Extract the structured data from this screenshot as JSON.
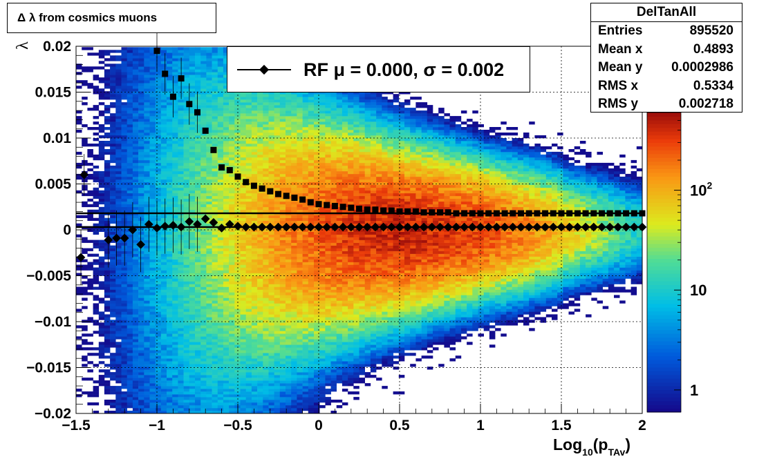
{
  "title": "Δ λ from cosmics muons",
  "stats": {
    "name": "DelTanAll",
    "rows": [
      {
        "label": "Entries",
        "value": "895520"
      },
      {
        "label": "Mean x",
        "value": "0.4893"
      },
      {
        "label": "Mean y",
        "value": "0.0002986"
      },
      {
        "label": "RMS x",
        "value": "0.5334"
      },
      {
        "label": "RMS y",
        "value": "0.002718"
      }
    ]
  },
  "legend": {
    "text": "RF μ =  0.000, σ =   0.002"
  },
  "chart_data": {
    "type": "heatmap",
    "xlabel": "Log10(pTAv)",
    "ylabel": "λ",
    "xlim": [
      -1.5,
      2
    ],
    "ylim": [
      -0.02,
      0.02
    ],
    "xticks": [
      -1.5,
      -1,
      -0.5,
      0,
      0.5,
      1,
      1.5,
      2
    ],
    "xtick_labels": [
      "−1.5",
      "−1",
      "−0.5",
      "0",
      "0.5",
      "1",
      "1.5",
      "2"
    ],
    "yticks": [
      -0.02,
      -0.015,
      -0.01,
      -0.005,
      0,
      0.005,
      0.01,
      0.015,
      0.02
    ],
    "ytick_labels": [
      "−0.02",
      "−0.015",
      "−0.01",
      "−0.005",
      "0",
      "0.005",
      "0.01",
      "0.015",
      "0.02"
    ],
    "grid": true,
    "z_scale": "log",
    "colorbar_labels": [
      "1",
      "10",
      "10^2"
    ],
    "colorbar_values": [
      1,
      10,
      100
    ],
    "zlim": [
      0.6,
      600
    ],
    "horizontal_lines": [
      0.0018,
      0.0003
    ],
    "mean_series": {
      "name": "mean",
      "x": [
        -1.47,
        -1.3,
        -1.25,
        -1.2,
        -1.15,
        -1.1,
        -1.05,
        -1.0,
        -0.95,
        -0.9,
        -0.85,
        -0.8,
        -0.75,
        -0.7,
        -0.65,
        -0.6,
        -0.55,
        -0.5,
        -0.45,
        -0.4,
        -0.35,
        -0.3,
        -0.25,
        -0.2,
        -0.15,
        -0.1,
        -0.05,
        0.0,
        0.05,
        0.1,
        0.15,
        0.2,
        0.25,
        0.3,
        0.35,
        0.4,
        0.45,
        0.5,
        0.55,
        0.6,
        0.65,
        0.7,
        0.75,
        0.8,
        0.85,
        0.9,
        0.95,
        1.0,
        1.05,
        1.1,
        1.15,
        1.2,
        1.25,
        1.3,
        1.35,
        1.4,
        1.45,
        1.5,
        1.55,
        1.6,
        1.65,
        1.7,
        1.75,
        1.8,
        1.85,
        1.9,
        1.95,
        2.0
      ],
      "y": [
        -0.003,
        -0.0011,
        -0.0009,
        -0.0009,
        0.0,
        -0.0016,
        0.0006,
        0.0002,
        0.0004,
        0.0005,
        0.0003,
        0.0009,
        0.0006,
        0.0012,
        0.0008,
        0.0002,
        0.0006,
        0.0004,
        0.0003,
        0.0003,
        0.0003,
        0.0003,
        0.0003,
        0.0003,
        0.0003,
        0.0003,
        0.0003,
        0.0003,
        0.0003,
        0.0003,
        0.0003,
        0.0003,
        0.0003,
        0.0003,
        0.0003,
        0.0003,
        0.0003,
        0.0003,
        0.0003,
        0.0003,
        0.0003,
        0.0003,
        0.0003,
        0.0003,
        0.0003,
        0.0003,
        0.0003,
        0.0003,
        0.0003,
        0.0003,
        0.0003,
        0.0003,
        0.0003,
        0.0003,
        0.0003,
        0.0003,
        0.0003,
        0.0003,
        0.0003,
        0.0003,
        0.0003,
        0.0003,
        0.0003,
        0.0003,
        0.0003,
        0.0003,
        0.0003,
        0.0003
      ]
    },
    "rms_series": {
      "name": "RMS",
      "x": [
        -1.45,
        -1.0,
        -0.95,
        -0.9,
        -0.85,
        -0.8,
        -0.75,
        -0.7,
        -0.65,
        -0.6,
        -0.55,
        -0.5,
        -0.45,
        -0.4,
        -0.35,
        -0.3,
        -0.25,
        -0.2,
        -0.15,
        -0.1,
        -0.05,
        0.0,
        0.05,
        0.1,
        0.15,
        0.2,
        0.25,
        0.3,
        0.35,
        0.4,
        0.45,
        0.5,
        0.55,
        0.6,
        0.65,
        0.7,
        0.75,
        0.8,
        0.85,
        0.9,
        0.95,
        1.0,
        1.05,
        1.1,
        1.15,
        1.2,
        1.25,
        1.3,
        1.35,
        1.4,
        1.45,
        1.5,
        1.55,
        1.6,
        1.65,
        1.7,
        1.75,
        1.8,
        1.85,
        1.9,
        1.95,
        2.0
      ],
      "y": [
        0.006,
        0.0195,
        0.017,
        0.0145,
        0.0165,
        0.0137,
        0.0128,
        0.0108,
        0.0087,
        0.0068,
        0.0065,
        0.0058,
        0.0052,
        0.0048,
        0.0045,
        0.0042,
        0.0039,
        0.0037,
        0.0035,
        0.0033,
        0.003,
        0.0028,
        0.0027,
        0.0026,
        0.0025,
        0.0024,
        0.0023,
        0.0022,
        0.0022,
        0.0021,
        0.0021,
        0.002,
        0.002,
        0.002,
        0.0019,
        0.0019,
        0.0019,
        0.0019,
        0.0018,
        0.0018,
        0.0018,
        0.0018,
        0.0018,
        0.0018,
        0.0018,
        0.0018,
        0.0018,
        0.0018,
        0.0018,
        0.0018,
        0.0018,
        0.0018,
        0.0018,
        0.0018,
        0.0018,
        0.0018,
        0.0018,
        0.0018,
        0.0018,
        0.0018,
        0.0018,
        0.0018
      ]
    }
  }
}
